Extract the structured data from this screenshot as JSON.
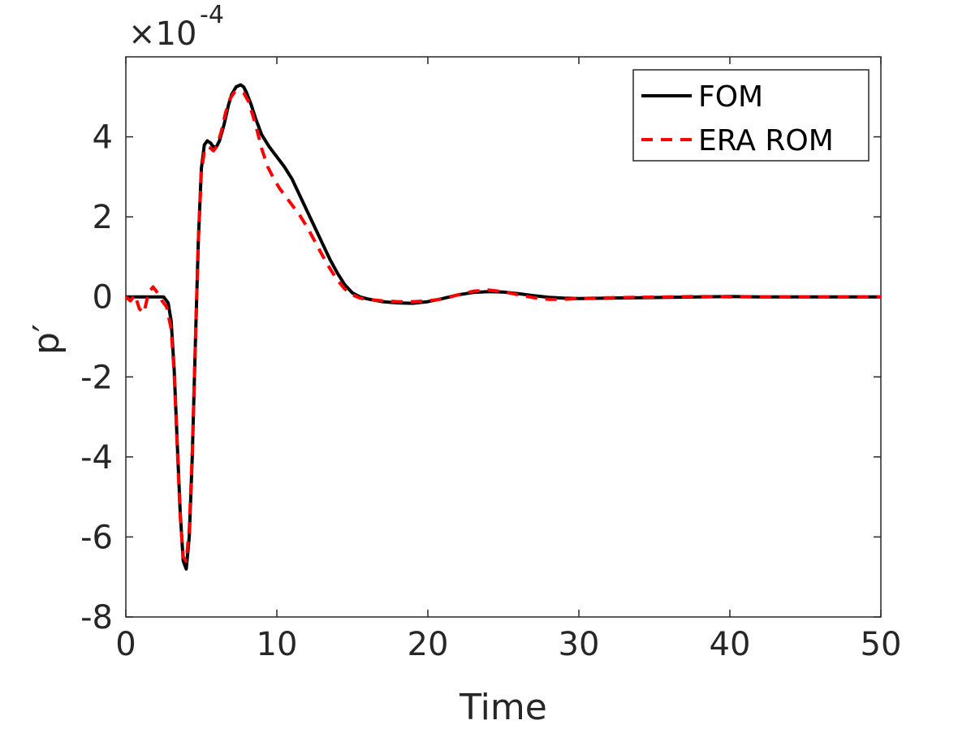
{
  "chart_data": {
    "type": "line",
    "title": "",
    "xlabel": "Time",
    "ylabel": "p′",
    "y_scale_label": {
      "base": "×10",
      "exponent": "-4"
    },
    "xlim": [
      0,
      50
    ],
    "ylim": [
      -8,
      6
    ],
    "xticks": [
      0,
      10,
      20,
      30,
      40,
      50
    ],
    "xtick_labels": [
      "0",
      "10",
      "20",
      "30",
      "40",
      "50"
    ],
    "yticks": [
      -8,
      -6,
      -4,
      -2,
      0,
      2,
      4
    ],
    "ytick_labels": [
      "-8",
      "-6",
      "-4",
      "-2",
      "0",
      "2",
      "4"
    ],
    "grid": false,
    "legend_position": "top-right",
    "colors": {
      "fom": "#000000",
      "rom": "#ff0000",
      "axis": "#262626"
    },
    "series": [
      {
        "name": "FOM",
        "style": "solid",
        "x": [
          0,
          1,
          2,
          2.5,
          2.8,
          3.0,
          3.2,
          3.4,
          3.6,
          3.8,
          4.0,
          4.2,
          4.4,
          4.6,
          4.8,
          5.0,
          5.2,
          5.4,
          5.6,
          5.8,
          6.0,
          6.2,
          6.5,
          6.8,
          7.0,
          7.3,
          7.6,
          7.8,
          8.0,
          8.3,
          8.6,
          9.0,
          9.5,
          10,
          10.5,
          11,
          11.5,
          12,
          12.5,
          13,
          13.5,
          14,
          14.5,
          15,
          15.5,
          16,
          17,
          18,
          19,
          20,
          21,
          22,
          23,
          24,
          25,
          26,
          27,
          28,
          29,
          30,
          32,
          34,
          36,
          38,
          40,
          42,
          44,
          46,
          48,
          50
        ],
        "y": [
          0,
          0,
          0,
          0,
          -0.15,
          -0.6,
          -1.8,
          -3.6,
          -5.4,
          -6.6,
          -6.8,
          -6.0,
          -4.0,
          -1.2,
          1.4,
          3.2,
          3.8,
          3.9,
          3.85,
          3.75,
          3.75,
          3.9,
          4.3,
          4.8,
          5.05,
          5.25,
          5.3,
          5.25,
          5.1,
          4.8,
          4.45,
          4.05,
          3.75,
          3.5,
          3.25,
          2.95,
          2.55,
          2.15,
          1.75,
          1.35,
          0.95,
          0.6,
          0.3,
          0.1,
          0.0,
          -0.05,
          -0.12,
          -0.15,
          -0.16,
          -0.12,
          -0.04,
          0.05,
          0.11,
          0.13,
          0.12,
          0.08,
          0.03,
          -0.01,
          -0.03,
          -0.04,
          -0.03,
          -0.02,
          -0.01,
          0.0,
          0.01,
          0.0,
          0.0,
          0.0,
          0.0,
          0.0
        ]
      },
      {
        "name": "ERA ROM",
        "style": "dashed",
        "x": [
          0,
          0.3,
          0.6,
          0.9,
          1.2,
          1.5,
          1.8,
          2.1,
          2.4,
          2.7,
          3.0,
          3.2,
          3.4,
          3.6,
          3.8,
          4.0,
          4.2,
          4.4,
          4.6,
          4.8,
          5.0,
          5.2,
          5.4,
          5.6,
          5.8,
          6.0,
          6.3,
          6.6,
          6.9,
          7.2,
          7.5,
          7.8,
          8.1,
          8.4,
          8.7,
          9.0,
          9.4,
          9.8,
          10.2,
          10.6,
          11,
          11.5,
          12,
          12.5,
          13,
          13.5,
          14,
          14.5,
          15,
          15.5,
          16,
          17,
          18,
          19,
          20,
          21,
          22,
          23,
          24,
          25,
          26,
          27,
          28,
          29,
          30,
          32,
          34,
          36,
          38,
          40,
          42,
          44,
          46,
          48,
          50
        ],
        "y": [
          0,
          -0.1,
          0.05,
          -0.3,
          -0.4,
          0.1,
          0.25,
          0.1,
          -0.1,
          -0.25,
          -0.8,
          -1.9,
          -3.7,
          -5.5,
          -6.5,
          -6.6,
          -5.8,
          -3.9,
          -1.2,
          1.4,
          3.1,
          3.65,
          3.75,
          3.72,
          3.65,
          3.75,
          4.1,
          4.6,
          4.95,
          5.12,
          5.15,
          5.1,
          4.9,
          4.55,
          4.15,
          3.7,
          3.25,
          2.95,
          2.7,
          2.5,
          2.3,
          2.05,
          1.75,
          1.4,
          1.05,
          0.72,
          0.42,
          0.2,
          0.05,
          -0.03,
          -0.06,
          -0.1,
          -0.12,
          -0.12,
          -0.1,
          -0.05,
          0.05,
          0.14,
          0.17,
          0.13,
          0.05,
          -0.02,
          -0.06,
          -0.06,
          -0.04,
          -0.02,
          -0.01,
          0.0,
          0.01,
          0.0,
          0.0,
          0.0,
          0.0,
          0.0,
          0.0
        ]
      }
    ]
  }
}
